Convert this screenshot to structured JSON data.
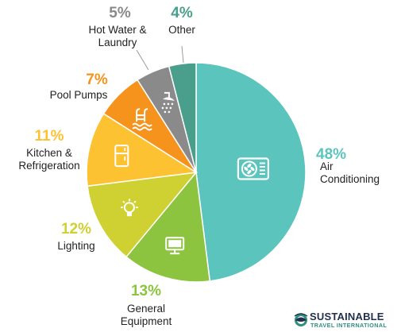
{
  "chart_data": {
    "type": "pie",
    "slices": [
      {
        "label_lines": [
          "Air",
          "Conditioning"
        ],
        "value": 48,
        "pct_label": "48%",
        "color": "#5bc5bd",
        "icon": "air-conditioner-icon"
      },
      {
        "label_lines": [
          "General",
          "Equipment"
        ],
        "value": 13,
        "pct_label": "13%",
        "color": "#8cc43f",
        "icon": "monitor-icon"
      },
      {
        "label_lines": [
          "Lighting"
        ],
        "value": 12,
        "pct_label": "12%",
        "color": "#cfd031",
        "icon": "lightbulb-icon"
      },
      {
        "label_lines": [
          "Kitchen &",
          "Refrigeration"
        ],
        "value": 11,
        "pct_label": "11%",
        "color": "#fcc232",
        "icon": "refrigerator-icon"
      },
      {
        "label_lines": [
          "Pool Pumps"
        ],
        "value": 7,
        "pct_label": "7%",
        "color": "#f6931d",
        "icon": "pool-ladder-icon"
      },
      {
        "label_lines": [
          "Hot Water &",
          "Laundry"
        ],
        "value": 5,
        "pct_label": "5%",
        "color": "#8a8a8a",
        "icon": "shower-icon"
      },
      {
        "label_lines": [
          "Other"
        ],
        "value": 4,
        "pct_label": "4%",
        "color": "#4a9e8c",
        "icon": ""
      }
    ],
    "start_angle": 0,
    "direction": "clockwise"
  },
  "logo": {
    "name": "SUSTAINABLE",
    "sub": "TRAVEL INTERNATIONAL"
  }
}
